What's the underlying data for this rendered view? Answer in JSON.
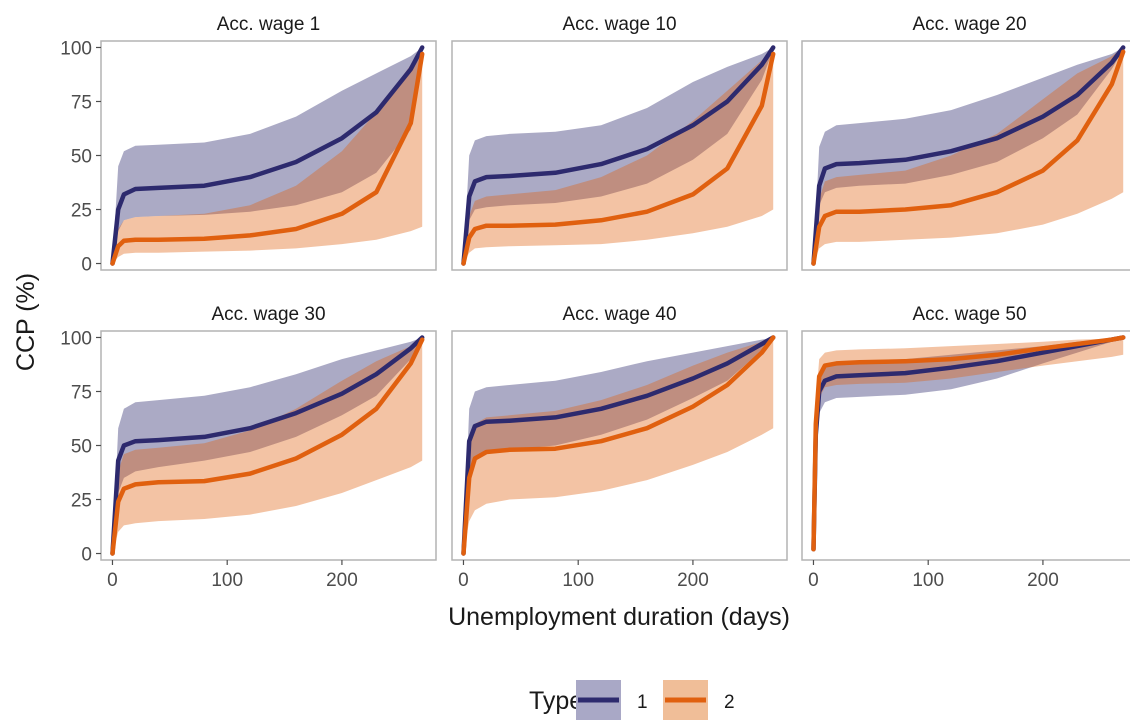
{
  "chart_data": {
    "type": "line",
    "xlabel": "Unemployment duration (days)",
    "ylabel": "CCP (%)",
    "xlim": [
      -10,
      282
    ],
    "ylim": [
      -3,
      103
    ],
    "x_ticks": [
      0,
      100,
      200
    ],
    "y_ticks": [
      0,
      25,
      50,
      75,
      100
    ],
    "legend": {
      "title": "Type",
      "position": "bottom",
      "entries": [
        {
          "label": "1",
          "color": "#2d2a6e",
          "band_color": "#a9a8c6"
        },
        {
          "label": "2",
          "color": "#e0600f",
          "band_color": "#f0be98"
        }
      ]
    },
    "panels": [
      {
        "title": "Acc. wage 1",
        "series": [
          {
            "name": "1",
            "x": [
              0,
              5,
              10,
              20,
              40,
              80,
              120,
              160,
              200,
              230,
              260,
              270
            ],
            "y": [
              0,
              25,
              32,
              34.5,
              35,
              36,
              40,
              47,
              58,
              70,
              90,
              100
            ],
            "lower": [
              0,
              15,
              20,
              21.5,
              22,
              22.5,
              24,
              27,
              33,
              42,
              62,
              97
            ],
            "upper": [
              0,
              45,
              52,
              54.5,
              55,
              56,
              60,
              68,
              80,
              88,
              96,
              100
            ]
          },
          {
            "name": "2",
            "x": [
              0,
              5,
              10,
              20,
              40,
              80,
              120,
              160,
              200,
              230,
              260,
              270
            ],
            "y": [
              0,
              8,
              10.5,
              11,
              11,
              11.5,
              13,
              16,
              23,
              33,
              65,
              97
            ],
            "lower": [
              0,
              3,
              4.5,
              5,
              5,
              5.5,
              6,
              7,
              9,
              11,
              15,
              17
            ],
            "upper": [
              0,
              16,
              20,
              21.5,
              22,
              23,
              27,
              36,
              52,
              70,
              92,
              100
            ]
          }
        ]
      },
      {
        "title": "Acc. wage 10",
        "series": [
          {
            "name": "1",
            "x": [
              0,
              5,
              10,
              20,
              40,
              80,
              120,
              160,
              200,
              230,
              260,
              270
            ],
            "y": [
              0,
              31,
              38,
              40,
              40.5,
              42,
              46,
              53,
              64,
              75,
              92,
              100
            ],
            "lower": [
              0,
              20,
              25,
              26,
              27,
              28,
              31,
              37,
              48,
              60,
              85,
              99
            ],
            "upper": [
              0,
              50,
              57,
              59,
              60,
              61,
              64,
              72,
              84,
              91,
              97,
              100
            ]
          },
          {
            "name": "2",
            "x": [
              0,
              5,
              10,
              20,
              40,
              80,
              120,
              160,
              200,
              230,
              260,
              270
            ],
            "y": [
              0,
              12,
              16,
              17.5,
              17.5,
              18,
              20,
              24,
              32,
              44,
              73,
              97
            ],
            "lower": [
              0,
              5,
              7,
              7.5,
              8,
              8.5,
              9,
              11,
              14,
              17,
              22,
              25
            ],
            "upper": [
              0,
              22,
              29,
              31,
              32,
              34,
              40,
              50,
              66,
              80,
              94,
              100
            ]
          }
        ]
      },
      {
        "title": "Acc. wage 20",
        "series": [
          {
            "name": "1",
            "x": [
              0,
              5,
              10,
              20,
              40,
              80,
              120,
              160,
              200,
              230,
              260,
              270
            ],
            "y": [
              0,
              36,
              44,
              46,
              46.5,
              48,
              52,
              58,
              68,
              78,
              93,
              100
            ],
            "lower": [
              0,
              27,
              33,
              35,
              36,
              37,
              41,
              47,
              58,
              69,
              90,
              99
            ],
            "upper": [
              0,
              54,
              61,
              64,
              65,
              67,
              71,
              78,
              86,
              92,
              97,
              100
            ]
          },
          {
            "name": "2",
            "x": [
              0,
              5,
              10,
              20,
              40,
              80,
              120,
              160,
              200,
              230,
              260,
              270
            ],
            "y": [
              0,
              17,
              22,
              24,
              24,
              25,
              27,
              33,
              43,
              57,
              83,
              98
            ],
            "lower": [
              0,
              7,
              9,
              10,
              10,
              11,
              12,
              14,
              18,
              23,
              30,
              33
            ],
            "upper": [
              0,
              30,
              38,
              40,
              41,
              43,
              50,
              60,
              76,
              88,
              96,
              100
            ]
          }
        ]
      },
      {
        "title": "Acc. wage 30",
        "series": [
          {
            "name": "1",
            "x": [
              0,
              5,
              10,
              20,
              40,
              80,
              120,
              160,
              200,
              230,
              260,
              270
            ],
            "y": [
              0,
              43,
              50,
              52,
              52.5,
              54,
              58,
              65,
              74,
              83,
              95,
              100
            ],
            "lower": [
              0,
              28,
              35,
              38,
              40,
              43,
              47,
              54,
              64,
              73,
              90,
              99
            ],
            "upper": [
              0,
              58,
              67,
              70,
              71,
              73,
              77,
              83,
              90,
              94,
              98,
              100
            ]
          },
          {
            "name": "2",
            "x": [
              0,
              5,
              10,
              20,
              40,
              80,
              120,
              160,
              200,
              230,
              260,
              270
            ],
            "y": [
              0,
              24,
              30,
              32,
              33,
              33.5,
              37,
              44,
              55,
              67,
              88,
              99
            ],
            "lower": [
              0,
              10,
              13,
              14,
              15,
              16,
              18,
              22,
              28,
              34,
              40,
              43
            ],
            "upper": [
              0,
              38,
              46,
              48,
              49,
              51,
              57,
              67,
              80,
              89,
              96,
              100
            ]
          }
        ]
      },
      {
        "title": "Acc. wage 40",
        "series": [
          {
            "name": "1",
            "x": [
              0,
              5,
              10,
              20,
              40,
              80,
              120,
              160,
              200,
              230,
              260,
              270
            ],
            "y": [
              0,
              52,
              59,
              61,
              61.5,
              63,
              67,
              73,
              81,
              88,
              97,
              100
            ],
            "lower": [
              0,
              37,
              44,
              47,
              48,
              50,
              55,
              62,
              72,
              80,
              94,
              99
            ],
            "upper": [
              0,
              67,
              75,
              77,
              78,
              80,
              84,
              89,
              93,
              96,
              99,
              100
            ]
          },
          {
            "name": "2",
            "x": [
              0,
              5,
              10,
              20,
              40,
              80,
              120,
              160,
              200,
              230,
              260,
              270
            ],
            "y": [
              0,
              35,
              44,
              47,
              48,
              48.5,
              52,
              58,
              68,
              78,
              93,
              100
            ],
            "lower": [
              0,
              15,
              20,
              23,
              25,
              26,
              29,
              34,
              41,
              47,
              55,
              58
            ],
            "upper": [
              0,
              52,
              60,
              63,
              64,
              66,
              71,
              78,
              87,
              93,
              98,
              100
            ]
          }
        ]
      },
      {
        "title": "Acc. wage 50",
        "series": [
          {
            "name": "1",
            "x": [
              0,
              2,
              5,
              10,
              20,
              40,
              80,
              120,
              160,
              200,
              230,
              260,
              270
            ],
            "y": [
              2,
              55,
              75,
              80,
              82,
              82.5,
              83.5,
              86,
              89,
              93,
              96,
              99,
              100
            ],
            "lower": [
              2,
              45,
              65,
              70,
              72,
              72.5,
              73.5,
              76,
              81,
              88,
              93,
              98,
              100
            ],
            "upper": [
              2,
              65,
              83,
              87,
              88.5,
              89,
              90,
              92,
              94,
              96,
              98,
              99.5,
              100
            ]
          },
          {
            "name": "2",
            "x": [
              0,
              2,
              5,
              10,
              20,
              40,
              80,
              120,
              160,
              200,
              230,
              260,
              270
            ],
            "y": [
              2,
              60,
              82,
              87,
              88,
              88.5,
              89,
              90,
              92,
              95,
              97,
              99,
              100
            ],
            "lower": [
              2,
              50,
              72,
              77,
              78,
              78.5,
              79,
              81,
              84,
              87,
              89,
              91,
              92
            ],
            "upper": [
              2,
              70,
              90,
              93,
              94,
              94.5,
              95,
              96,
              97,
              98,
              99,
              99.5,
              100
            ]
          }
        ]
      }
    ]
  }
}
